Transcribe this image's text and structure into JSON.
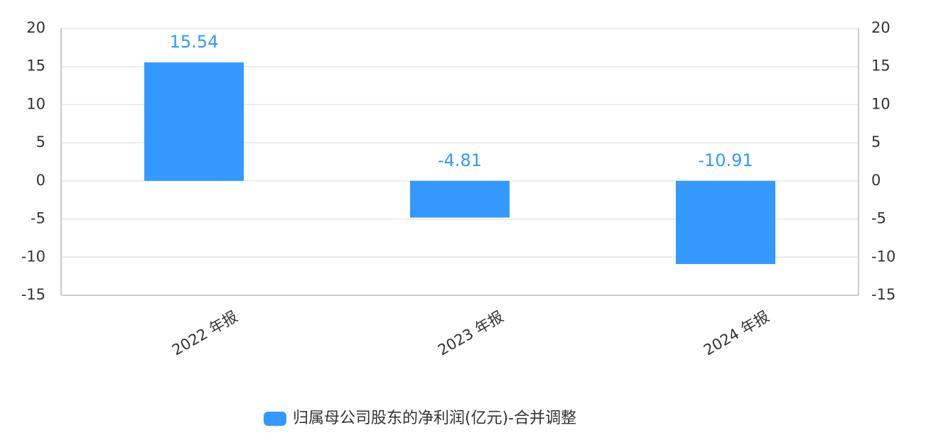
{
  "chart_data": {
    "type": "bar",
    "categories": [
      "2022 年报",
      "2023 年报",
      "2024 年报"
    ],
    "series": [
      {
        "name": "归属母公司股东的净利润(亿元)-合并调整",
        "color": "#3399ff",
        "values": [
          15.54,
          -4.81,
          -10.91
        ]
      }
    ],
    "ylim": [
      -15,
      20
    ],
    "yticks": [
      -15,
      -10,
      -5,
      0,
      5,
      10,
      15,
      20
    ],
    "y2lim": [
      -15,
      20
    ],
    "y2ticks": [
      -15,
      -10,
      -5,
      0,
      5,
      10,
      15,
      20
    ],
    "grid": true,
    "legend": "bottom"
  }
}
